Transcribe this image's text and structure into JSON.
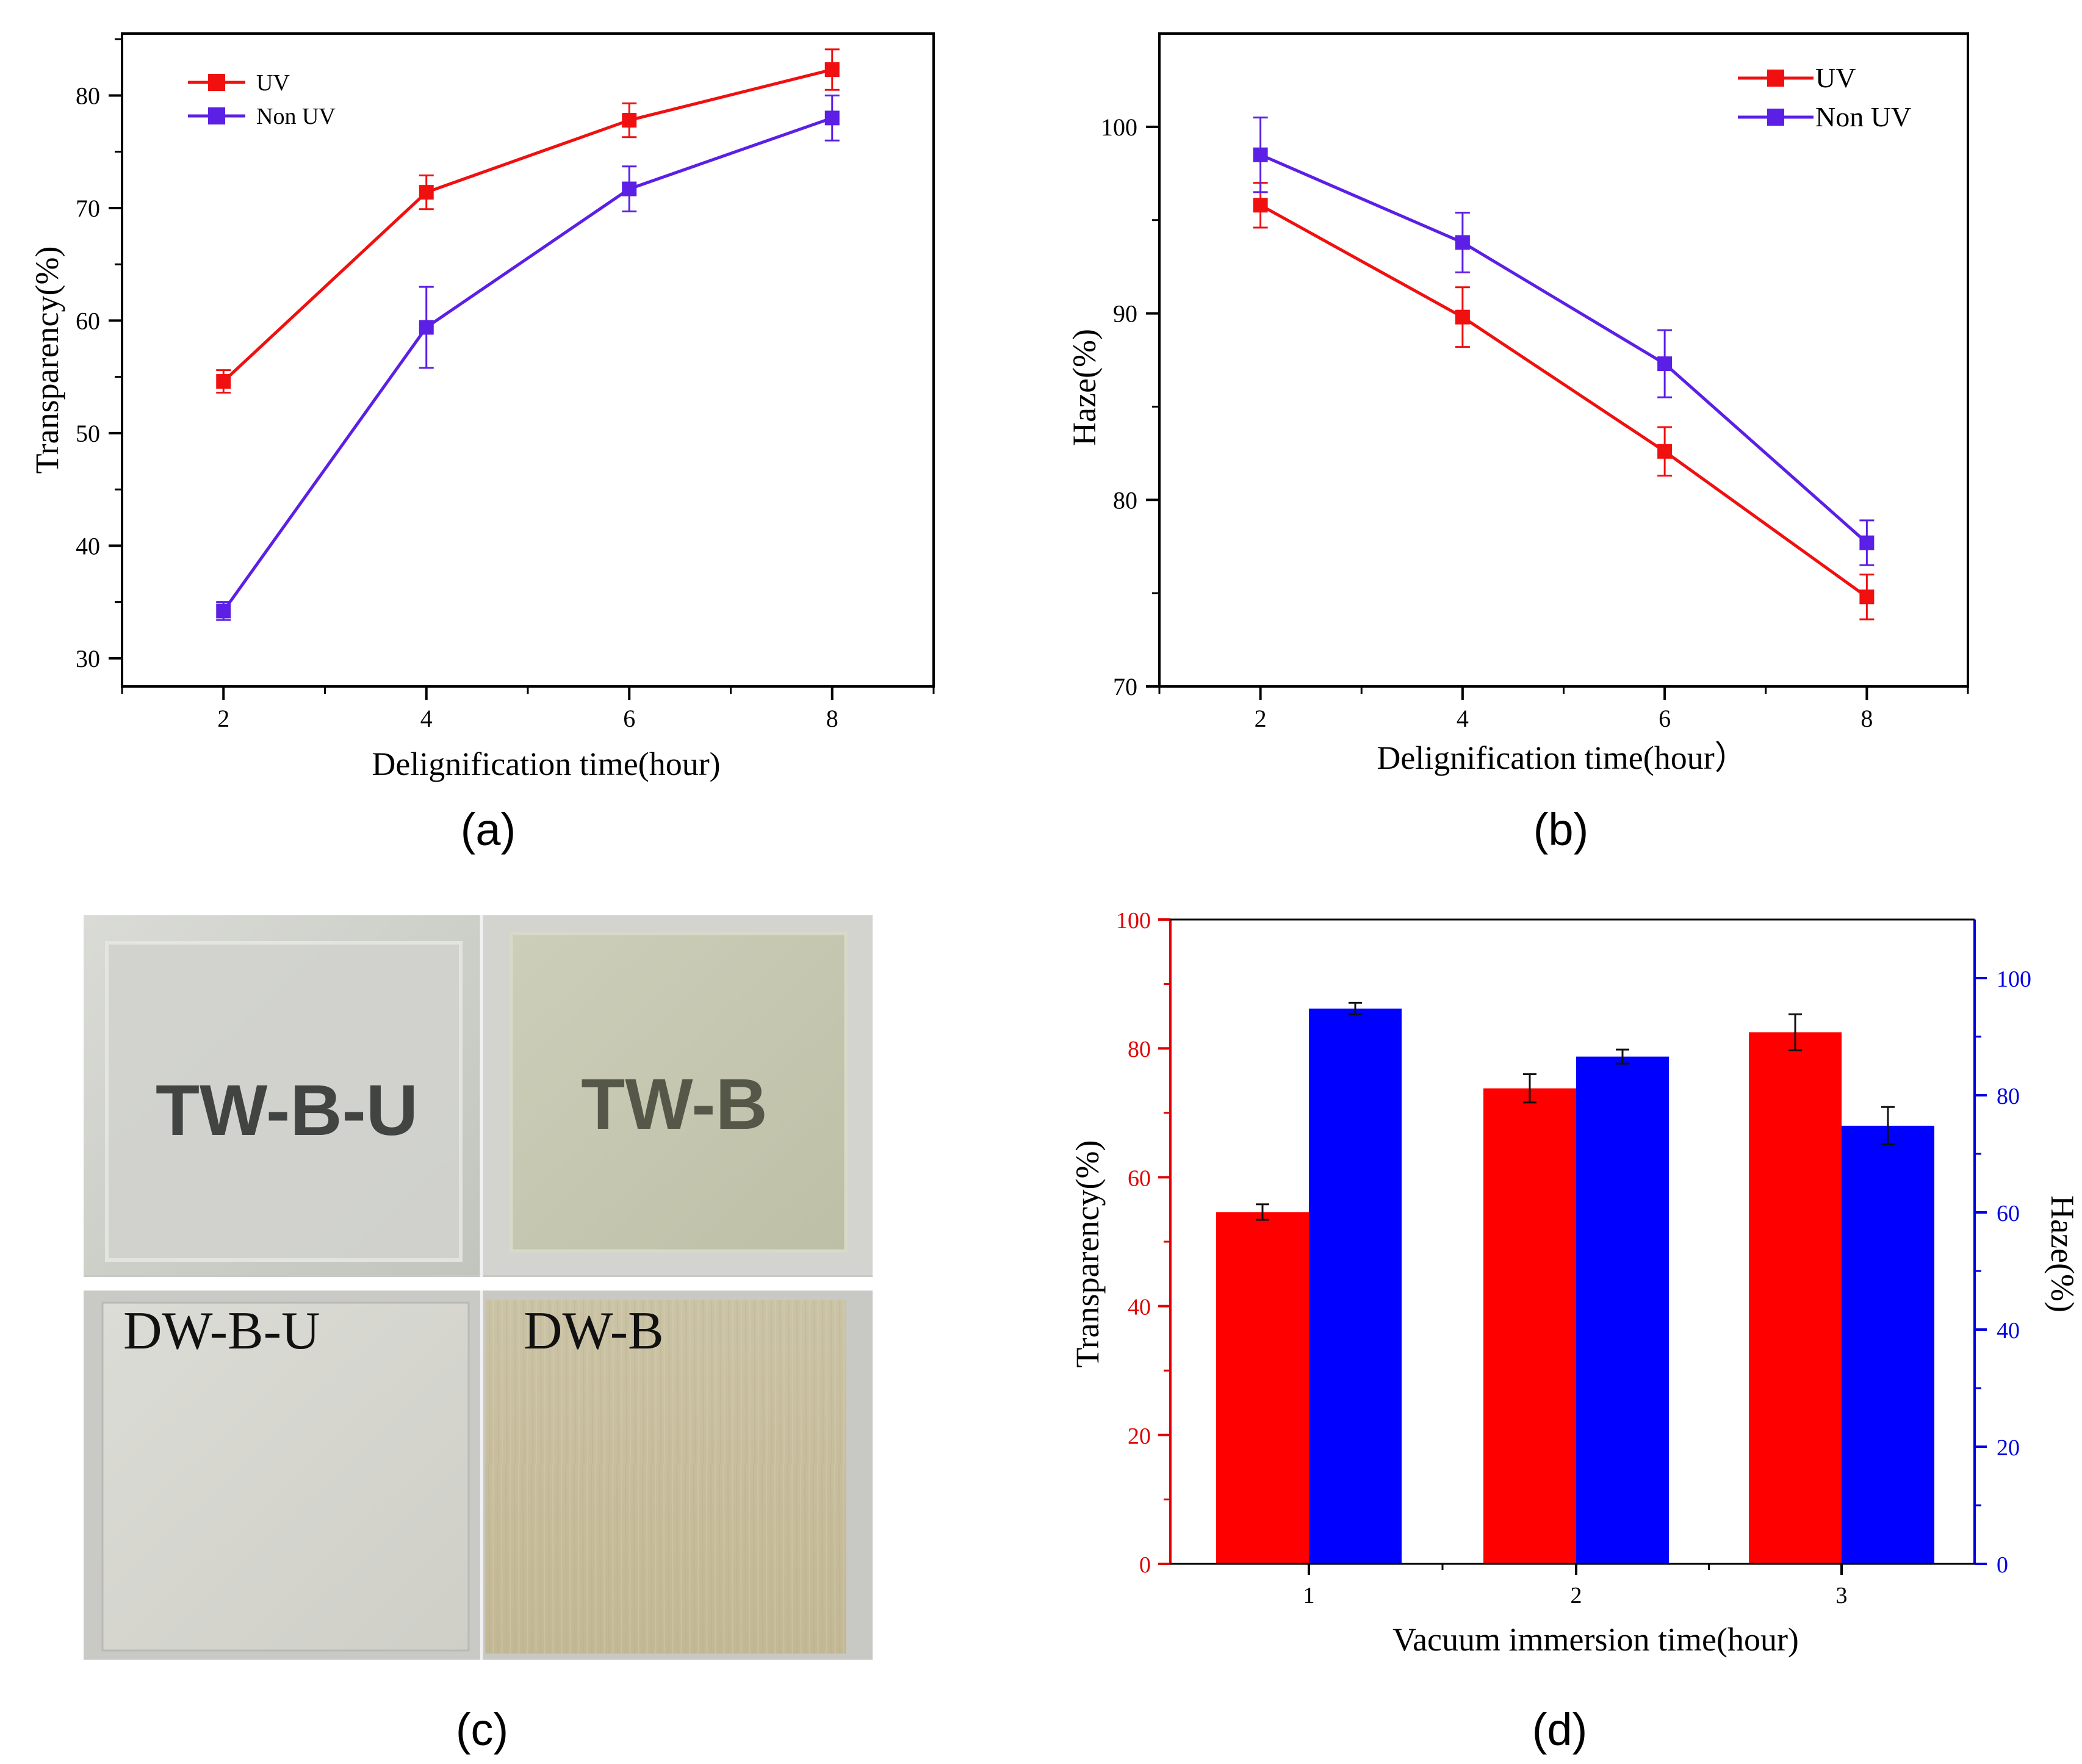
{
  "panels": {
    "a": {
      "label": "(a)"
    },
    "b": {
      "label": "(b)"
    },
    "c": {
      "label": "(c)"
    },
    "d": {
      "label": "(d)"
    }
  },
  "photos": {
    "tl": {
      "text": "TW-B-U"
    },
    "tr": {
      "text": "TW-B"
    },
    "bl": {
      "text": "DW-B-U"
    },
    "br": {
      "text": "DW-B"
    }
  },
  "colors": {
    "uv": "#f01010",
    "nonuv": "#5b1fe6",
    "bar_red": "#ff0000",
    "bar_blue": "#0000ff"
  },
  "chart_data": [
    {
      "id": "a",
      "type": "line",
      "title": "",
      "xlabel": "Delignification time(hour)",
      "ylabel": "Transparency(%)",
      "x": [
        2,
        4,
        6,
        8
      ],
      "xticks": [
        2,
        4,
        6,
        8
      ],
      "xlim": [
        1,
        9
      ],
      "yticks": [
        30,
        40,
        50,
        60,
        70,
        80
      ],
      "ylim": [
        27.5,
        85.5
      ],
      "legend_position": "top-left",
      "series": [
        {
          "name": "UV",
          "values": [
            54.6,
            71.4,
            77.8,
            82.3
          ],
          "errors": [
            1.0,
            1.5,
            1.5,
            1.8
          ]
        },
        {
          "name": "Non UV",
          "values": [
            34.2,
            59.4,
            71.7,
            78.0
          ],
          "errors": [
            0.8,
            3.6,
            2.0,
            2.0
          ]
        }
      ]
    },
    {
      "id": "b",
      "type": "line",
      "title": "",
      "xlabel": "Delignification time(hour）",
      "ylabel": "Haze(%)",
      "x": [
        2,
        4,
        6,
        8
      ],
      "xticks": [
        2,
        4,
        6,
        8
      ],
      "xlim": [
        1,
        9
      ],
      "yticks": [
        70,
        80,
        90,
        100
      ],
      "ylim": [
        70,
        105
      ],
      "legend_position": "top-right",
      "series": [
        {
          "name": "UV",
          "values": [
            95.8,
            89.8,
            82.6,
            74.8
          ],
          "errors": [
            1.2,
            1.6,
            1.3,
            1.2
          ]
        },
        {
          "name": "Non UV",
          "values": [
            98.5,
            93.8,
            87.3,
            77.7
          ],
          "errors": [
            2.0,
            1.6,
            1.8,
            1.2
          ]
        }
      ]
    },
    {
      "id": "d",
      "type": "bar",
      "title": "",
      "xlabel": "Vacuum immersion time(hour)",
      "ylabel_left": "Transparency(%)",
      "ylabel_right": "Haze(%)",
      "categories": [
        "1",
        "2",
        "3"
      ],
      "ylim_left": [
        0,
        100
      ],
      "ylim_right": [
        0,
        110
      ],
      "yticks_left": [
        0,
        20,
        40,
        60,
        80,
        100
      ],
      "yticks_right": [
        0,
        20,
        40,
        60,
        80,
        100
      ],
      "series": [
        {
          "name": "Transparency",
          "axis": "left",
          "values": [
            54.6,
            73.8,
            82.5
          ],
          "errors": [
            1.2,
            2.2,
            2.8
          ]
        },
        {
          "name": "Haze",
          "axis": "right",
          "values": [
            94.8,
            86.6,
            74.8
          ],
          "errors": [
            1.0,
            1.2,
            3.2
          ]
        }
      ]
    }
  ]
}
